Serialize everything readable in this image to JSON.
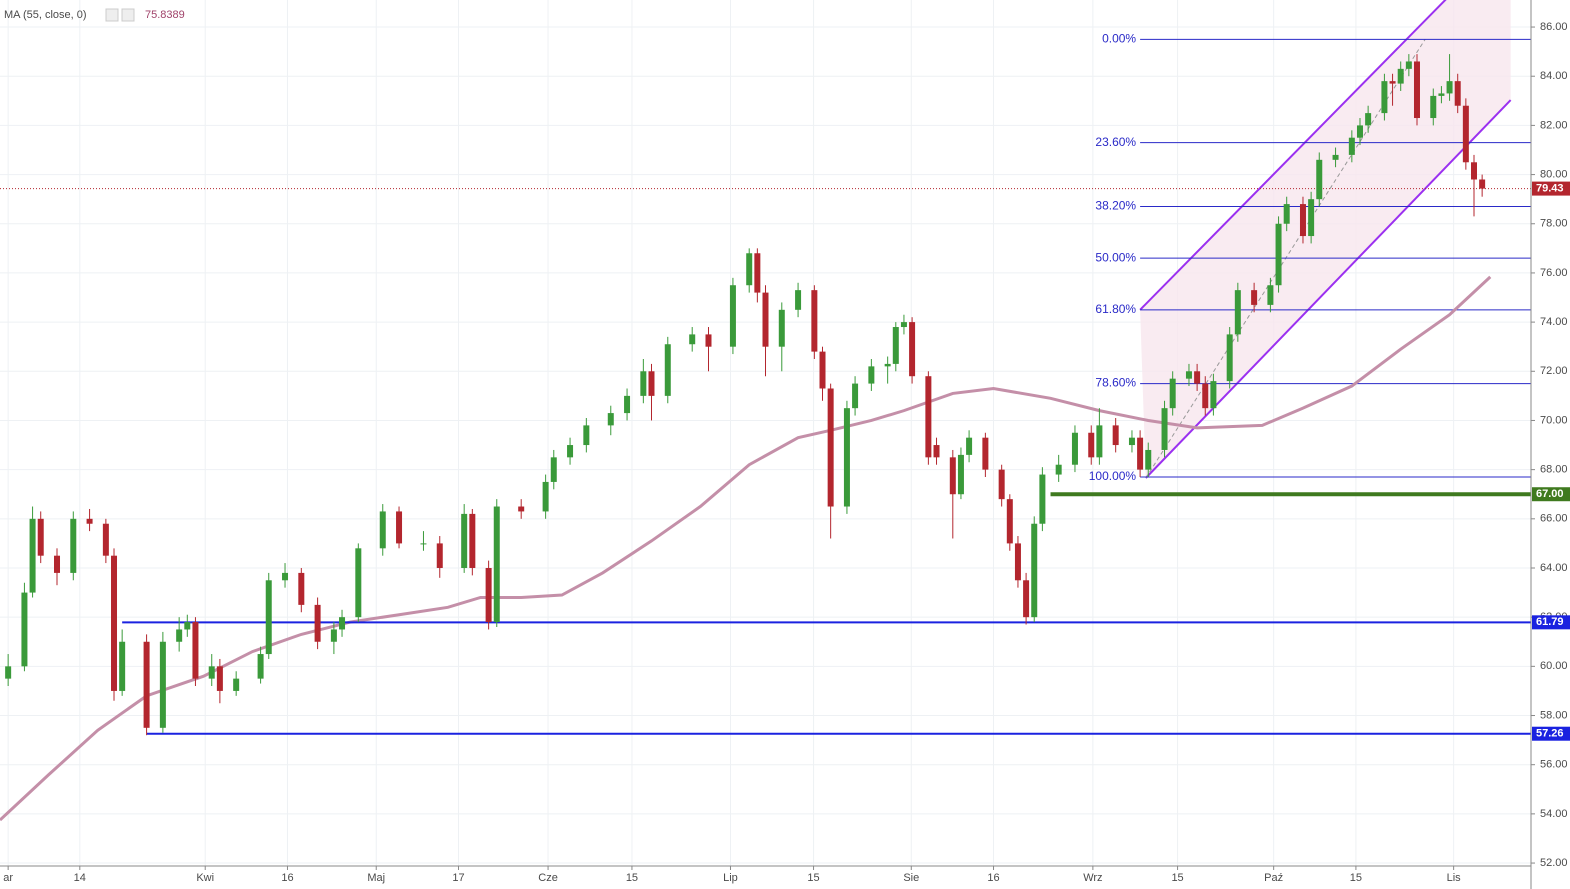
{
  "chart_data": {
    "type": "candlestick",
    "x": [
      1,
      3,
      4,
      5,
      7,
      9,
      11,
      13,
      14,
      15,
      18,
      20,
      22,
      23,
      24,
      26,
      27,
      29,
      32,
      33,
      35,
      37,
      39,
      41,
      42,
      44,
      47,
      49,
      52,
      54,
      57,
      58,
      60,
      61,
      64,
      67,
      68,
      70,
      72,
      75,
      77,
      79,
      80,
      82,
      85,
      87,
      90,
      92,
      93,
      94,
      96,
      98,
      100,
      101,
      102,
      104,
      105,
      107,
      109,
      110,
      111,
      112,
      114,
      115,
      117,
      118,
      119,
      121,
      123,
      124,
      125,
      126,
      127,
      128,
      130,
      132,
      134,
      135,
      137,
      139,
      140,
      141,
      143,
      144,
      146,
      147,
      148,
      149,
      151,
      152,
      154,
      156,
      157,
      158,
      160,
      161,
      162,
      164,
      166,
      167,
      168,
      170,
      171,
      172,
      173,
      174,
      176,
      177,
      178,
      179,
      180,
      181,
      182
    ],
    "open": [
      59.5,
      60,
      63,
      66,
      64.5,
      63.8,
      66,
      65.8,
      64.5,
      59,
      61,
      57.5,
      61,
      61.5,
      61.8,
      59.5,
      60,
      59,
      59.5,
      60.5,
      63.5,
      63.8,
      62.5,
      61,
      61.5,
      62,
      64.8,
      66.3,
      65,
      65,
      64,
      66.2,
      64,
      61.8,
      66.5,
      66.3,
      67.5,
      68.5,
      69,
      69.8,
      70.3,
      71,
      72,
      71,
      73.1,
      73.5,
      73,
      75.5,
      76.8,
      75.2,
      73,
      74.5,
      75.3,
      72.8,
      71.3,
      66.5,
      70.5,
      71.5,
      72.2,
      72.3,
      73.8,
      74,
      71.8,
      69,
      68.5,
      67,
      68.6,
      69.3,
      68,
      66.8,
      65,
      63.5,
      62,
      65.8,
      67.8,
      68.2,
      69.5,
      68.5,
      69.8,
      69,
      69.3,
      68,
      68.8,
      70.5,
      71.7,
      72,
      71.5,
      70.5,
      71.6,
      73.5,
      75.3,
      74.7,
      75.5,
      78,
      78.8,
      77.5,
      79,
      80.6,
      80.8,
      81.5,
      82,
      82.5,
      83.8,
      83.7,
      84.3,
      84.6,
      82.3,
      83.2,
      83.3,
      83.8,
      82.8,
      80.5,
      79.8
    ],
    "high": [
      60.5,
      63.4,
      66.5,
      66.3,
      64.8,
      66.3,
      66.4,
      66,
      64.8,
      61.5,
      61.3,
      61.4,
      62,
      62.1,
      62,
      60.5,
      60.3,
      59.8,
      60.8,
      63.8,
      64.2,
      64,
      62.8,
      61.8,
      62.3,
      65,
      66.6,
      66.5,
      65.5,
      65.3,
      66.6,
      66.4,
      64.3,
      66.8,
      66.8,
      67.8,
      68.8,
      69.3,
      70.1,
      70.6,
      71.3,
      72.5,
      72.3,
      73.4,
      73.8,
      73.8,
      75.8,
      77,
      77,
      75.5,
      74.8,
      75.6,
      75.5,
      73,
      71.5,
      70.8,
      71.8,
      72.5,
      72.6,
      74,
      74.3,
      74.2,
      72,
      69.3,
      68.8,
      68.9,
      69.6,
      69.5,
      68.2,
      67,
      65.3,
      63.8,
      66.1,
      68.1,
      68.6,
      69.8,
      69.8,
      70.5,
      70.1,
      69.6,
      69.6,
      69.1,
      70.8,
      72,
      72.3,
      72.3,
      71.8,
      71.9,
      73.8,
      75.6,
      75.6,
      75.8,
      78.3,
      79.1,
      79.1,
      79.3,
      80.9,
      81.1,
      81.8,
      82.3,
      82.8,
      84.1,
      84.1,
      84.6,
      84.9,
      84.9,
      83.5,
      83.6,
      84.9,
      84.1,
      83.1,
      80.8,
      80
    ],
    "low": [
      59.2,
      59.8,
      62.8,
      64.2,
      63.3,
      63.5,
      65.5,
      64.2,
      58.6,
      58.8,
      57.2,
      57.3,
      60.6,
      61.2,
      59.2,
      59.2,
      58.5,
      58.8,
      59.3,
      60.3,
      63.2,
      62.2,
      60.7,
      60.5,
      61.2,
      61.8,
      64.5,
      64.8,
      64.7,
      63.6,
      63.8,
      63.7,
      61.5,
      61.6,
      66,
      66,
      67.2,
      68.2,
      68.7,
      69.4,
      70,
      70.7,
      70,
      70.7,
      72.8,
      72,
      72.7,
      75.2,
      74.8,
      71.8,
      72,
      74.2,
      72.5,
      70.8,
      65.2,
      66.2,
      70.2,
      71.2,
      71.5,
      72,
      73.5,
      71.5,
      68.2,
      68.2,
      65.2,
      66.8,
      68.3,
      67.7,
      66.5,
      64.7,
      63.2,
      61.7,
      61.8,
      65.5,
      67.5,
      67.9,
      68.2,
      68.2,
      68.7,
      68.7,
      67.7,
      67.7,
      68.5,
      70.2,
      71.4,
      71.2,
      70.2,
      70.2,
      71.3,
      73.2,
      74.4,
      74.4,
      75.2,
      77.7,
      77.2,
      77.2,
      78.7,
      80.3,
      80.5,
      81.2,
      81.7,
      82.2,
      82.8,
      83.4,
      84,
      82,
      82,
      82.9,
      83,
      82.5,
      80.2,
      78.3,
      79.1
    ],
    "close": [
      60,
      63,
      66,
      64.5,
      63.8,
      66,
      65.8,
      64.5,
      59,
      61,
      57.5,
      61,
      61.5,
      61.8,
      59.5,
      60,
      59,
      59.5,
      60.5,
      63.5,
      63.8,
      62.5,
      61,
      61.5,
      62,
      64.8,
      66.3,
      65,
      65,
      64,
      66.2,
      64,
      61.8,
      66.5,
      66.3,
      67.5,
      68.5,
      69,
      69.8,
      70.3,
      71,
      72,
      71,
      73.1,
      73.5,
      73,
      75.5,
      76.8,
      75.2,
      73,
      74.5,
      75.3,
      72.8,
      71.3,
      66.5,
      70.5,
      71.5,
      72.2,
      72.3,
      73.8,
      74,
      71.8,
      68.5,
      68.5,
      67,
      68.6,
      69.3,
      68,
      66.8,
      65,
      63.5,
      62,
      65.8,
      67.8,
      68.2,
      69.5,
      68.5,
      69.8,
      69,
      69.3,
      68,
      68.8,
      70.5,
      71.7,
      72,
      71.5,
      70.5,
      71.6,
      73.5,
      75.3,
      74.7,
      75.5,
      78,
      78.8,
      77.5,
      79,
      80.6,
      80.8,
      81.5,
      82,
      82.5,
      83.8,
      83.7,
      84.3,
      84.6,
      82.3,
      83.2,
      83.3,
      83.8,
      82.8,
      80.5,
      79.8,
      79.43
    ],
    "up_color": "#3a9a3a",
    "down_color": "#b3262e",
    "ma": {
      "name": "MA (55, close, 0)",
      "color": "#c48fa8",
      "x": [
        0,
        6,
        12,
        18,
        25,
        31,
        37,
        43,
        49,
        55,
        59,
        64,
        69,
        74,
        80,
        86,
        92,
        98,
        102,
        107,
        111,
        117,
        122,
        129,
        135,
        141,
        147,
        155,
        160,
        166,
        172,
        178,
        183
      ],
      "values": [
        53.75,
        55.6,
        57.4,
        58.8,
        59.6,
        60.6,
        61.3,
        61.8,
        62.1,
        62.4,
        62.8,
        62.8,
        62.9,
        63.8,
        65.1,
        66.5,
        68.2,
        69.3,
        69.6,
        70,
        70.4,
        71.1,
        71.3,
        70.9,
        70.4,
        70,
        69.7,
        69.8,
        70.5,
        71.4,
        72.9,
        74.3,
        75.8389
      ]
    },
    "hlines": [
      {
        "value": 67,
        "label": "67.00",
        "from": 129,
        "color": "#3f7a1f"
      },
      {
        "value": 61.79,
        "label": "61.79",
        "from": 15,
        "color": "#1a22e0"
      },
      {
        "value": 57.26,
        "label": "57.26",
        "from": 18,
        "color": "#1a22e0"
      }
    ],
    "last_price": {
      "value": 79.43,
      "label": "79.43",
      "color": "#b3262e"
    },
    "fib": {
      "from": 140,
      "color": "#2a2ac8",
      "levels": [
        {
          "label": "0.00%",
          "price": 85.5
        },
        {
          "label": "23.60%",
          "price": 81.3
        },
        {
          "label": "38.20%",
          "price": 78.7
        },
        {
          "label": "50.00%",
          "price": 76.6
        },
        {
          "label": "61.80%",
          "price": 74.5
        },
        {
          "label": "78.60%",
          "price": 71.5
        },
        {
          "label": "100.00%",
          "price": 67.7
        }
      ]
    },
    "channel": {
      "color": "#9b30f0",
      "fill": "#f7e6ee",
      "lower": [
        [
          140.7,
          67.66
        ],
        [
          185.5,
          83.03
        ]
      ],
      "upper": [
        [
          140,
          74.5
        ],
        [
          185.5,
          89.8
        ]
      ],
      "trend": [
        [
          140.7,
          67.66
        ],
        [
          175,
          85.5
        ]
      ]
    },
    "xlim": [
      0,
      188
    ],
    "ylim": [
      51.88,
      87.1
    ],
    "xticks": [
      {
        "value": 1,
        "label": "ar"
      },
      {
        "value": 9.8,
        "label": "14"
      },
      {
        "value": 25.2,
        "label": "Kwi"
      },
      {
        "value": 35.3,
        "label": "16"
      },
      {
        "value": 46.2,
        "label": "Maj"
      },
      {
        "value": 56.3,
        "label": "17"
      },
      {
        "value": 67.3,
        "label": "Cze"
      },
      {
        "value": 77.6,
        "label": "15"
      },
      {
        "value": 89.7,
        "label": "Lip"
      },
      {
        "value": 99.9,
        "label": "15"
      },
      {
        "value": 111.9,
        "label": "Sie"
      },
      {
        "value": 122,
        "label": "16"
      },
      {
        "value": 134.2,
        "label": "Wrz"
      },
      {
        "value": 144.6,
        "label": "15"
      },
      {
        "value": 156.4,
        "label": "Paź"
      },
      {
        "value": 166.5,
        "label": "15"
      },
      {
        "value": 178.5,
        "label": "Lis"
      }
    ],
    "yticks": [
      {
        "value": 52,
        "label": "52.00"
      },
      {
        "value": 54,
        "label": "54.00"
      },
      {
        "value": 56,
        "label": "56.00"
      },
      {
        "value": 58,
        "label": "58.00"
      },
      {
        "value": 60,
        "label": "60.00"
      },
      {
        "value": 62,
        "label": "62.00"
      },
      {
        "value": 64,
        "label": "64.00"
      },
      {
        "value": 66,
        "label": "66.00"
      },
      {
        "value": 68,
        "label": "68.00"
      },
      {
        "value": 70,
        "label": "70.00"
      },
      {
        "value": 72,
        "label": "72.00"
      },
      {
        "value": 74,
        "label": "74.00"
      },
      {
        "value": 76,
        "label": "76.00"
      },
      {
        "value": 78,
        "label": "78.00"
      },
      {
        "value": 80,
        "label": "80.00"
      },
      {
        "value": 82,
        "label": "82.00"
      },
      {
        "value": 84,
        "label": "84.00"
      },
      {
        "value": 86,
        "label": "86.00"
      }
    ],
    "grid": true
  }
}
